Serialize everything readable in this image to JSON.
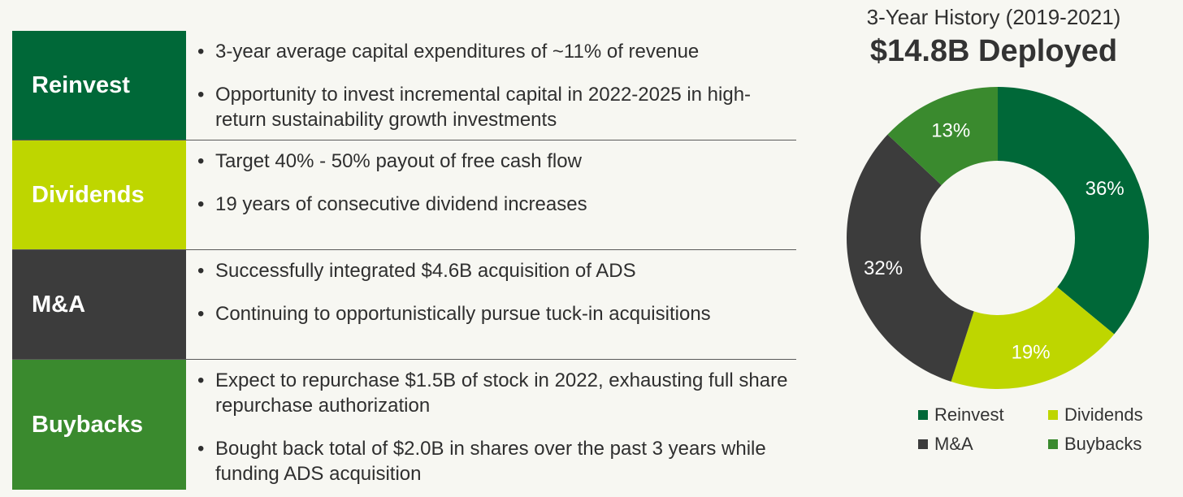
{
  "rows": [
    {
      "label": "Reinvest",
      "color": "#006838",
      "bullets": [
        "3-year average capital expenditures of ~11% of revenue",
        "Opportunity to invest incremental capital in 2022-2025 in high-return sustainability growth investments"
      ]
    },
    {
      "label": "Dividends",
      "color": "#bed600",
      "bullets": [
        "Target 40% - 50% payout of free cash flow",
        "19 years of consecutive dividend increases"
      ]
    },
    {
      "label": "M&A",
      "color": "#3c3c3c",
      "bullets": [
        "Successfully integrated $4.6B acquisition of ADS",
        "Continuing to opportunistically pursue tuck-in acquisitions"
      ]
    },
    {
      "label": "Buybacks",
      "color": "#3a8a2e",
      "bullets": [
        "Expect to repurchase $1.5B of stock in 2022, exhausting full share repurchase authorization",
        "Bought back total of $2.0B in shares over the past 3 years while funding ADS acquisition"
      ]
    }
  ],
  "bullet_glyph": "•",
  "chart_data": {
    "type": "pie",
    "subtitle": "3-Year History (2019-2021)",
    "title": "$14.8B Deployed",
    "donut": true,
    "categories": [
      "Reinvest",
      "Dividends",
      "M&A",
      "Buybacks"
    ],
    "values": [
      36,
      19,
      32,
      13
    ],
    "labels": [
      "36%",
      "19%",
      "32%",
      "13%"
    ],
    "colors": [
      "#006838",
      "#bed600",
      "#3c3c3c",
      "#3a8a2e"
    ],
    "legend_position": "bottom"
  }
}
